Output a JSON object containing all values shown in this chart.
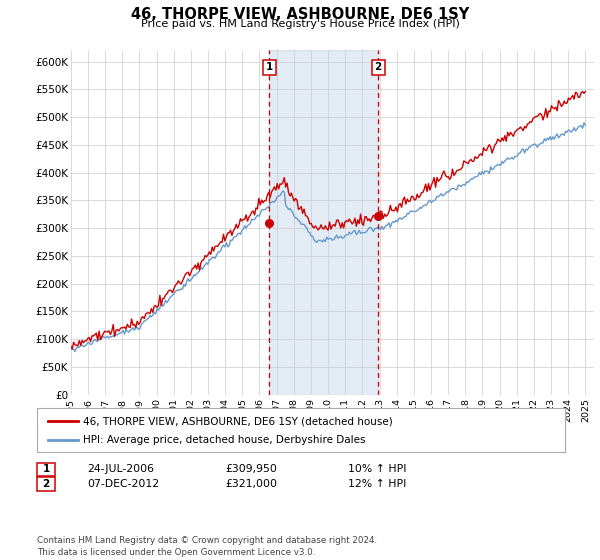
{
  "title": "46, THORPE VIEW, ASHBOURNE, DE6 1SY",
  "subtitle": "Price paid vs. HM Land Registry's House Price Index (HPI)",
  "ylabel_ticks": [
    "£0",
    "£50K",
    "£100K",
    "£150K",
    "£200K",
    "£250K",
    "£300K",
    "£350K",
    "£400K",
    "£450K",
    "£500K",
    "£550K",
    "£600K"
  ],
  "ylim": [
    0,
    620000
  ],
  "yticks": [
    0,
    50000,
    100000,
    150000,
    200000,
    250000,
    300000,
    350000,
    400000,
    450000,
    500000,
    550000,
    600000
  ],
  "legend_label_red": "46, THORPE VIEW, ASHBOURNE, DE6 1SY (detached house)",
  "legend_label_blue": "HPI: Average price, detached house, Derbyshire Dales",
  "sale1_date": "24-JUL-2006",
  "sale1_price": "£309,950",
  "sale1_hpi": "10% ↑ HPI",
  "sale2_date": "07-DEC-2012",
  "sale2_price": "£321,000",
  "sale2_hpi": "12% ↑ HPI",
  "footer": "Contains HM Land Registry data © Crown copyright and database right 2024.\nThis data is licensed under the Open Government Licence v3.0.",
  "red_color": "#cc0000",
  "blue_color": "#6699cc",
  "plot_bg_color": "#ffffff",
  "marker1_x": 2006.56,
  "marker1_y": 309950,
  "marker2_x": 2012.92,
  "marker2_y": 321000,
  "xlim_left": 1995.0,
  "xlim_right": 2025.5
}
